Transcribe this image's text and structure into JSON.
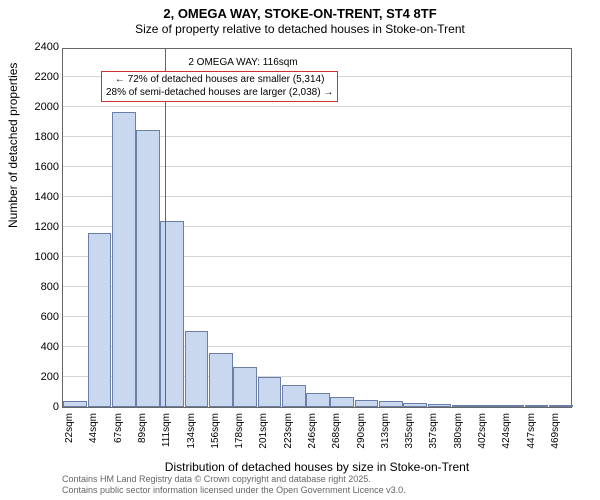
{
  "title_line1": "2, OMEGA WAY, STOKE-ON-TRENT, ST4 8TF",
  "title_line2": "Size of property relative to detached houses in Stoke-on-Trent",
  "ylabel": "Number of detached properties",
  "xlabel": "Distribution of detached houses by size in Stoke-on-Trent",
  "footer_line1": "Contains HM Land Registry data © Crown copyright and database right 2025.",
  "footer_line2": "Contains public sector information licensed under the Open Government Licence v3.0.",
  "chart": {
    "type": "histogram",
    "background_color": "#ffffff",
    "axis_color": "#666666",
    "grid_color": "#888888",
    "bar_fill": "#c9d8ef",
    "bar_border": "#6a7fa8",
    "marker_line_color": "#e03030",
    "annotation_border": "#d03030",
    "ylim": [
      0,
      2400
    ],
    "ytick_step": 200,
    "label_fontsize": 12,
    "tick_fontsize": 11,
    "x_categories": [
      "22sqm",
      "44sqm",
      "67sqm",
      "89sqm",
      "111sqm",
      "134sqm",
      "156sqm",
      "178sqm",
      "201sqm",
      "223sqm",
      "246sqm",
      "268sqm",
      "290sqm",
      "313sqm",
      "335sqm",
      "357sqm",
      "380sqm",
      "402sqm",
      "424sqm",
      "447sqm",
      "469sqm"
    ],
    "values": [
      40,
      1160,
      1970,
      1850,
      1240,
      510,
      360,
      270,
      200,
      150,
      95,
      70,
      50,
      40,
      30,
      18,
      12,
      9,
      6,
      5,
      4
    ],
    "marker_x_index": 4.2,
    "annotation_label": "2 OMEGA WAY: 116sqm",
    "annotation_line1": "← 72% of detached houses are smaller (5,314)",
    "annotation_line2": "28% of semi-detached houses are larger (2,038) →"
  }
}
